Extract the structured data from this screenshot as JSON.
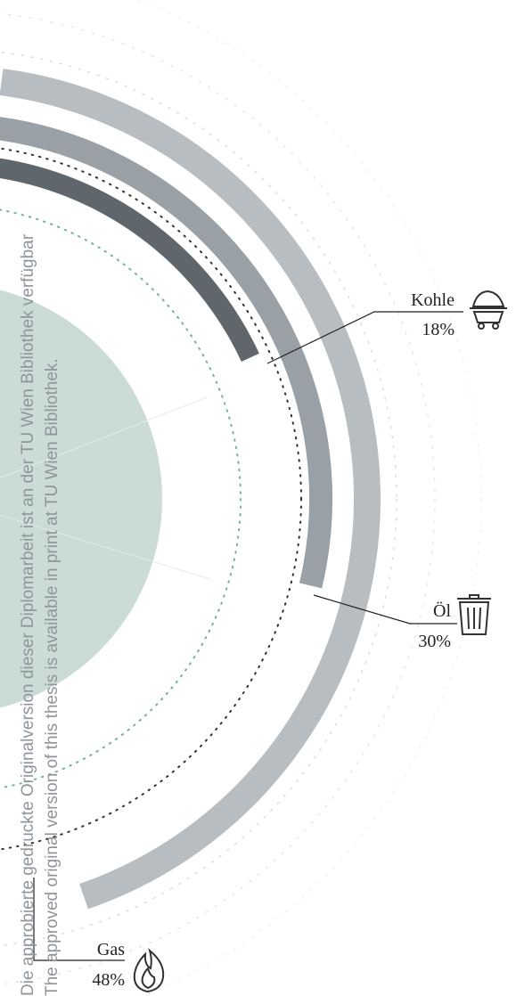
{
  "chart_data": {
    "type": "radial-bar",
    "title": "",
    "series": [
      {
        "name": "Kohle",
        "value": 18,
        "unit": "%",
        "color": "#5f676c",
        "icon": "coal-cart-icon"
      },
      {
        "name": "Öl",
        "value": 30,
        "unit": "%",
        "color": "#9aa1a6",
        "icon": "oil-barrel-icon"
      },
      {
        "name": "Gas",
        "value": 48,
        "unit": "%",
        "color": "#b8bdc1",
        "icon": "flame-icon"
      }
    ],
    "value_range": [
      0,
      100
    ],
    "inner_disc_color": "#cbdcd7"
  },
  "labels": {
    "kohle": {
      "name": "Kohle",
      "pct": "18%"
    },
    "oel": {
      "name": "Öl",
      "pct": "30%"
    },
    "gas": {
      "name": "Gas",
      "pct": "48%"
    }
  },
  "watermark": {
    "line1": "Die approbierte gedruckte Originalversion dieser Diplomarbeit ist an der TU Wien Bibliothek verfügbar",
    "line2": "The approved original version of this thesis is available in print at TU Wien Bibliothek."
  }
}
